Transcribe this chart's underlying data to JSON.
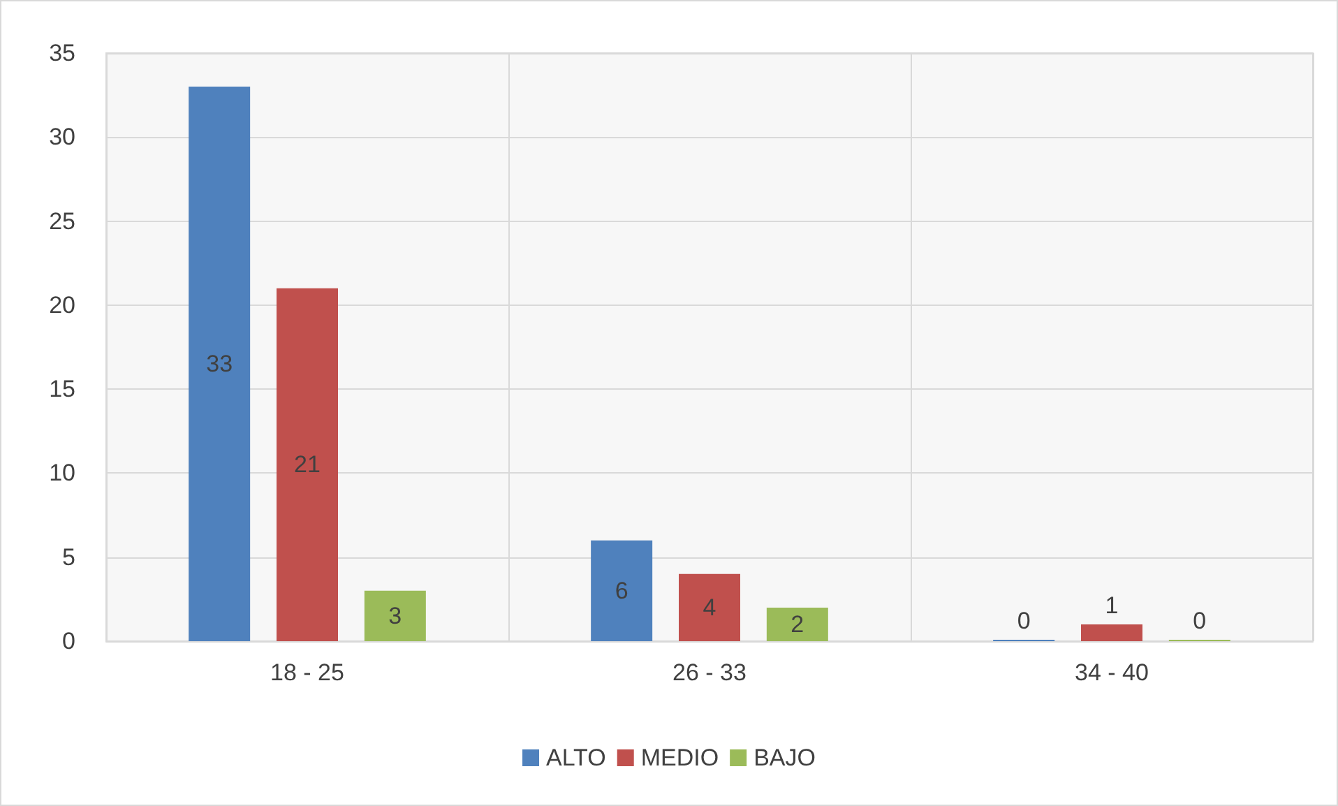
{
  "chart_data": {
    "type": "bar",
    "categories": [
      "18 - 25",
      "26 - 33",
      "34 - 40"
    ],
    "series": [
      {
        "name": "ALTO",
        "color": "#4f81bd",
        "values": [
          33,
          6,
          0
        ]
      },
      {
        "name": "MEDIO",
        "color": "#c0504d",
        "values": [
          21,
          4,
          1
        ]
      },
      {
        "name": "BAJO",
        "color": "#9bbb59",
        "values": [
          3,
          2,
          0
        ]
      }
    ],
    "ylim": [
      0,
      35
    ],
    "yticks": [
      0,
      5,
      10,
      15,
      20,
      25,
      30,
      35
    ],
    "grid": true,
    "legend": "bottom",
    "data_labels": true
  }
}
